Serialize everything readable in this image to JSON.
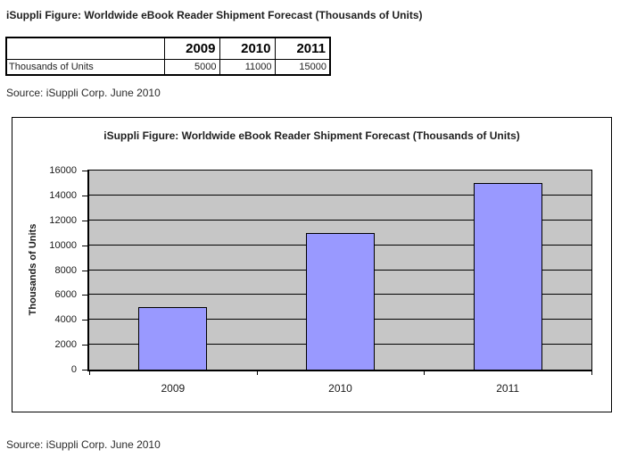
{
  "doc_title": "iSuppli Figure: Worldwide eBook Reader Shipment Forecast (Thousands of Units)",
  "source_top": "Source: iSuppli Corp. June 2010",
  "source_bottom": "Source: iSuppli Corp. June 2010",
  "table": {
    "row_label": "Thousands of Units",
    "columns": [
      "2009",
      "2010",
      "2011"
    ],
    "values": [
      "5000",
      "11000",
      "15000"
    ]
  },
  "chart_data": {
    "type": "bar",
    "title": "iSuppli Figure: Worldwide eBook Reader Shipment Forecast (Thousands of Units)",
    "categories": [
      "2009",
      "2010",
      "2011"
    ],
    "values": [
      5000,
      11000,
      15000
    ],
    "xlabel": "",
    "ylabel": "Thousands of Units",
    "ylim": [
      0,
      16000
    ],
    "ytick_step": 2000,
    "grid": "horizontal",
    "legend": "none",
    "colors": {
      "bar_fill": "#9999ff",
      "bar_border": "#000000",
      "plot_background": "#c6c6c6",
      "gridline": "#000000",
      "text": "#1a1a1a"
    }
  }
}
